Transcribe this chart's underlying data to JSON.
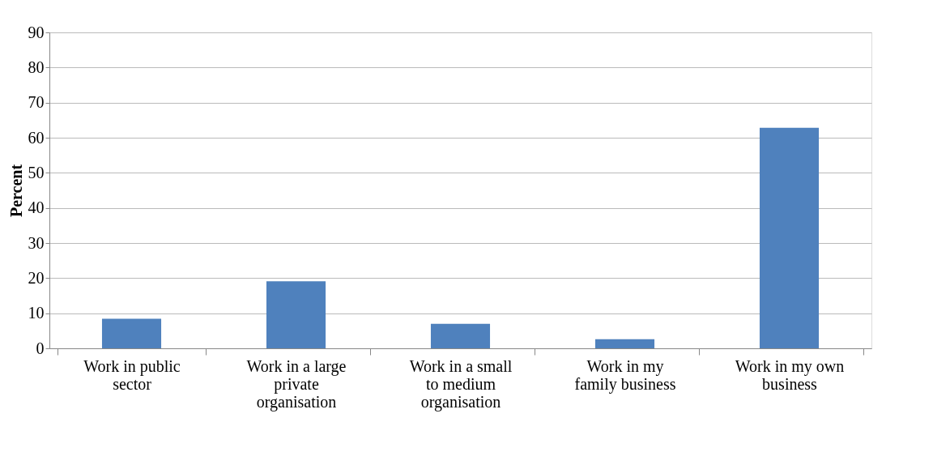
{
  "chart_data": {
    "type": "bar",
    "ylabel": "Percent",
    "categories": [
      "Work in public sector",
      "Work in a large private organisation",
      "Work in a small to medium organisation",
      "Work in my family business",
      "Work in my own business"
    ],
    "values": [
      8.4,
      19.1,
      7.0,
      2.6,
      62.8
    ],
    "color": "#4f81bd",
    "ylim": [
      0,
      90
    ],
    "yticks": [
      0,
      10,
      20,
      30,
      40,
      50,
      60,
      70,
      80,
      90
    ],
    "grid": "y"
  }
}
